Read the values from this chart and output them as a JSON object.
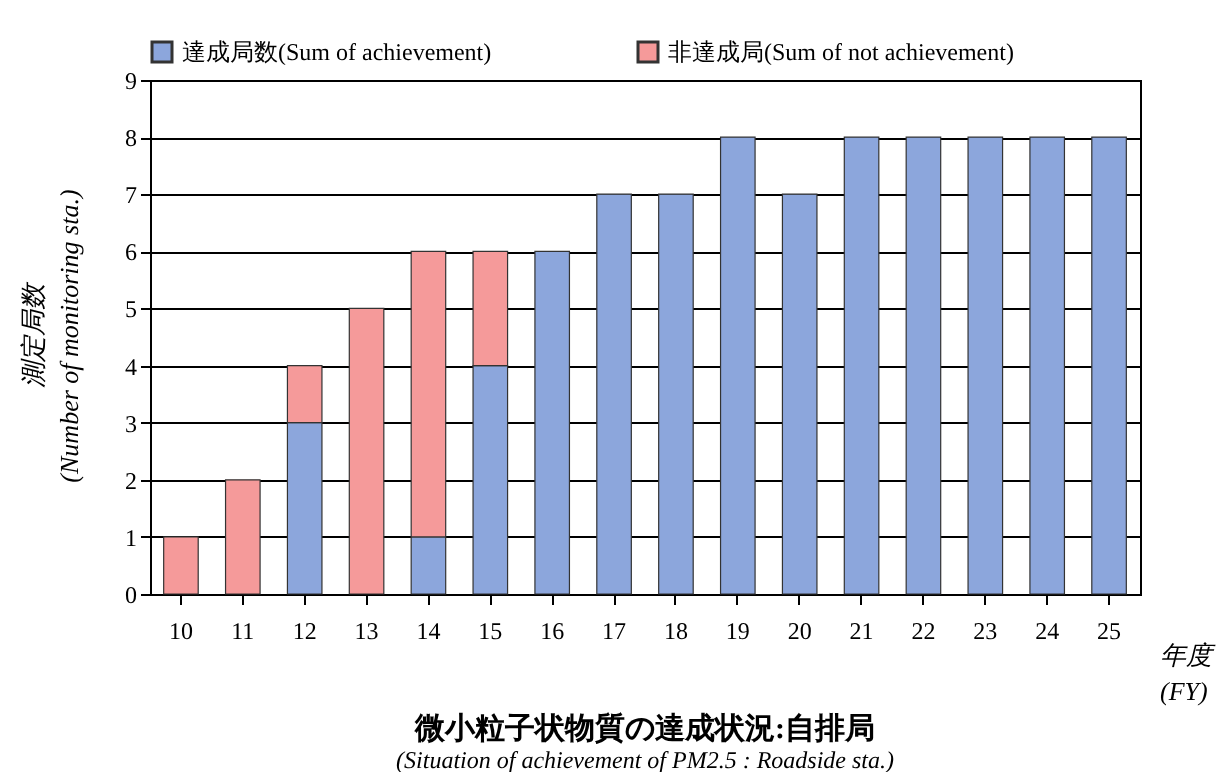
{
  "chart_data": {
    "type": "bar",
    "title": "微小粒子状物質の達成状況:自排局",
    "subtitle": "(Situation of achievement of PM2.5 : Roadside sta.)",
    "xlabel": "年度\n(FY)",
    "ylabel": "測定局数\n(Number of monitoring sta.)",
    "categories": [
      "10",
      "11",
      "12",
      "13",
      "14",
      "15",
      "16",
      "17",
      "18",
      "19",
      "20",
      "21",
      "22",
      "23",
      "24",
      "25"
    ],
    "stacked": true,
    "series": [
      {
        "name": "達成局数(Sum of achievement)",
        "color": "#8ca6dc",
        "values": [
          0,
          0,
          3,
          0,
          1,
          4,
          6,
          7,
          7,
          8,
          7,
          8,
          8,
          8,
          8,
          8
        ]
      },
      {
        "name": "非達成局(Sum of not achievement)",
        "color": "#f59a9a",
        "values": [
          1,
          2,
          1,
          5,
          5,
          2,
          0,
          0,
          0,
          0,
          0,
          0,
          0,
          0,
          0,
          0
        ]
      }
    ],
    "ylim": [
      0,
      9
    ],
    "yticks": [
      0,
      1,
      2,
      3,
      4,
      5,
      6,
      7,
      8,
      9
    ],
    "grid": "y",
    "legend": "top"
  }
}
